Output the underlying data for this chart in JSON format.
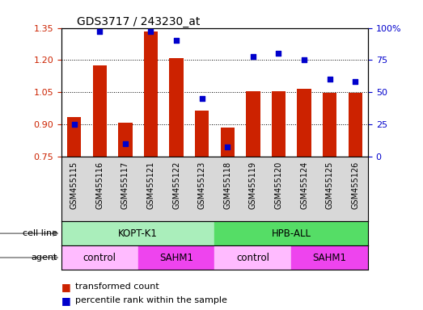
{
  "title": "GDS3717 / 243230_at",
  "samples": [
    "GSM455115",
    "GSM455116",
    "GSM455117",
    "GSM455121",
    "GSM455122",
    "GSM455123",
    "GSM455118",
    "GSM455119",
    "GSM455120",
    "GSM455124",
    "GSM455125",
    "GSM455126"
  ],
  "transformed_count": [
    0.935,
    1.175,
    0.905,
    1.335,
    1.21,
    0.965,
    0.885,
    1.055,
    1.055,
    1.065,
    1.045,
    1.045
  ],
  "percentile_rank": [
    25,
    97,
    10,
    97,
    90,
    45,
    7,
    78,
    80,
    75,
    60,
    58
  ],
  "ylim_left": [
    0.75,
    1.35
  ],
  "ylim_right": [
    0,
    100
  ],
  "yticks_left": [
    0.75,
    0.9,
    1.05,
    1.2,
    1.35
  ],
  "yticks_right": [
    0,
    25,
    50,
    75,
    100
  ],
  "bar_color": "#cc2200",
  "dot_color": "#0000cc",
  "bar_bottom": 0.75,
  "cell_line_groups": [
    {
      "label": "KOPT-K1",
      "start": 0,
      "end": 6,
      "color": "#aaeebb"
    },
    {
      "label": "HPB-ALL",
      "start": 6,
      "end": 12,
      "color": "#55dd66"
    }
  ],
  "agent_groups": [
    {
      "label": "control",
      "start": 0,
      "end": 3,
      "color": "#ffbbff"
    },
    {
      "label": "SAHM1",
      "start": 3,
      "end": 6,
      "color": "#ee44ee"
    },
    {
      "label": "control",
      "start": 6,
      "end": 9,
      "color": "#ffbbff"
    },
    {
      "label": "SAHM1",
      "start": 9,
      "end": 12,
      "color": "#ee44ee"
    }
  ],
  "legend_labels": [
    "transformed count",
    "percentile rank within the sample"
  ],
  "legend_colors": [
    "#cc2200",
    "#0000cc"
  ],
  "row_labels": [
    "cell line",
    "agent"
  ],
  "plot_bg": "#ffffff",
  "xtick_bg": "#d8d8d8"
}
